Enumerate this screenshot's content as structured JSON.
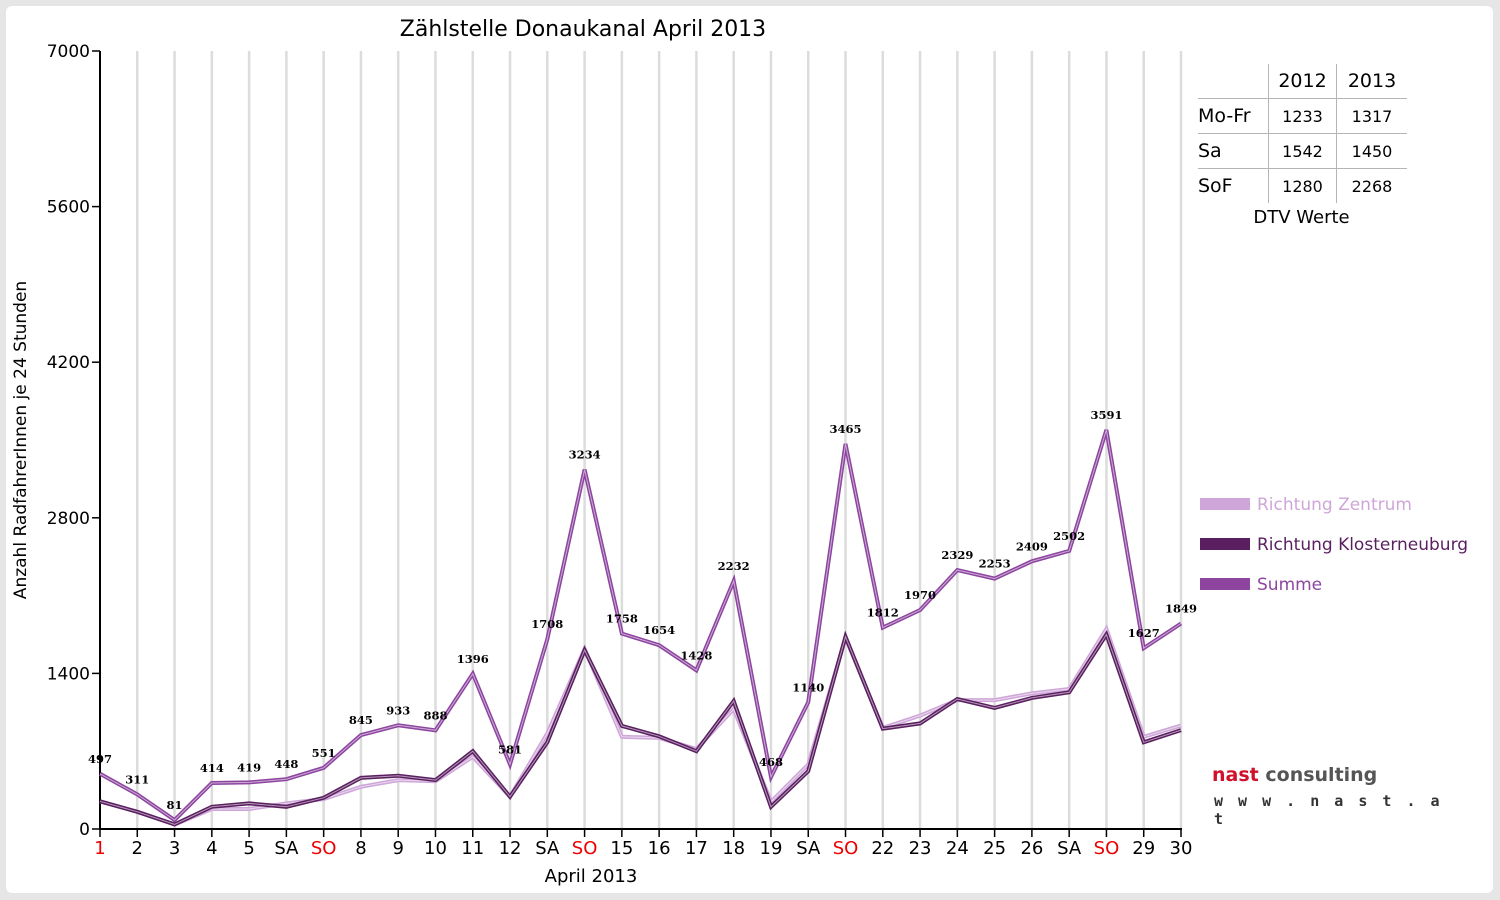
{
  "chart_data": {
    "type": "line",
    "title": "Zählstelle Donaukanal April 2013",
    "xlabel": "April 2013",
    "ylabel": "Anzahl RadfahrerInnen je 24 Stunden",
    "ylim": [
      0,
      7000
    ],
    "yticks": [
      "0",
      "1400",
      "2800",
      "4200",
      "5600",
      "7000"
    ],
    "categories": [
      "1",
      "2",
      "3",
      "4",
      "5",
      "SA",
      "SO",
      "8",
      "9",
      "10",
      "11",
      "12",
      "SA",
      "SO",
      "15",
      "16",
      "17",
      "18",
      "19",
      "SA",
      "SO",
      "22",
      "23",
      "24",
      "25",
      "26",
      "SA",
      "SO",
      "29",
      "30"
    ],
    "category_colors": [
      "#ee0000",
      "#000000",
      "#000000",
      "#000000",
      "#000000",
      "#000000",
      "#ee0000",
      "#000000",
      "#000000",
      "#000000",
      "#000000",
      "#000000",
      "#000000",
      "#ee0000",
      "#000000",
      "#000000",
      "#000000",
      "#000000",
      "#000000",
      "#000000",
      "#ee0000",
      "#000000",
      "#000000",
      "#000000",
      "#000000",
      "#000000",
      "#000000",
      "#ee0000",
      "#000000",
      "#000000"
    ],
    "series": [
      {
        "name": "Richtung Zentrum",
        "color": "#cfa6d9",
        "values": [
          248,
          156,
          40,
          180,
          180,
          230,
          270,
          380,
          440,
          430,
          650,
          290,
          860,
          1620,
          830,
          820,
          720,
          1080,
          245,
          580,
          1720,
          910,
          1020,
          1160,
          1160,
          1220,
          1260,
          1800,
          830,
          930
        ]
      },
      {
        "name": "Richtung Klosterneuburg",
        "color": "#5a1f60",
        "values": [
          249,
          155,
          41,
          200,
          230,
          200,
          281,
          460,
          480,
          440,
          700,
          291,
          780,
          1610,
          928,
          834,
          700,
          1151,
          200,
          520,
          1730,
          902,
          950,
          1170,
          1090,
          1180,
          1230,
          1750,
          780,
          890
        ]
      },
      {
        "name": "Summe",
        "color": "#8d45a0",
        "values": [
          497,
          311,
          81,
          414,
          419,
          448,
          551,
          845,
          933,
          888,
          1396,
          581,
          1708,
          3234,
          1758,
          1654,
          1428,
          2232,
          468,
          1140,
          3465,
          1812,
          1970,
          2329,
          2253,
          2409,
          2502,
          3591,
          1627,
          1849
        ]
      }
    ],
    "data_labels": [
      "497",
      "311",
      "81",
      "414",
      "419",
      "448",
      "551",
      "845",
      "933",
      "888",
      "1396",
      "581",
      "1708",
      "3234",
      "1758",
      "1654",
      "1428",
      "2232",
      "468",
      "1140",
      "3465",
      "1812",
      "1970",
      "2329",
      "2253",
      "2409",
      "2502",
      "3591",
      "1627",
      "1849"
    ],
    "legend_position": "right",
    "grid": true
  },
  "dtv": {
    "years": [
      "2012",
      "2013"
    ],
    "rows": [
      {
        "label": "Mo-Fr",
        "v2012": "1233",
        "v2013": "1317"
      },
      {
        "label": "Sa",
        "v2012": "1542",
        "v2013": "1450"
      },
      {
        "label": "SoF",
        "v2012": "1280",
        "v2013": "2268"
      }
    ],
    "caption": "DTV Werte"
  },
  "logo": {
    "brand_1": "nast",
    "brand_2": "consulting",
    "url": "w w w . n a s t . a t"
  },
  "colors": {
    "weekend_red": "#ee0000",
    "brand_red": "#d0112b"
  }
}
